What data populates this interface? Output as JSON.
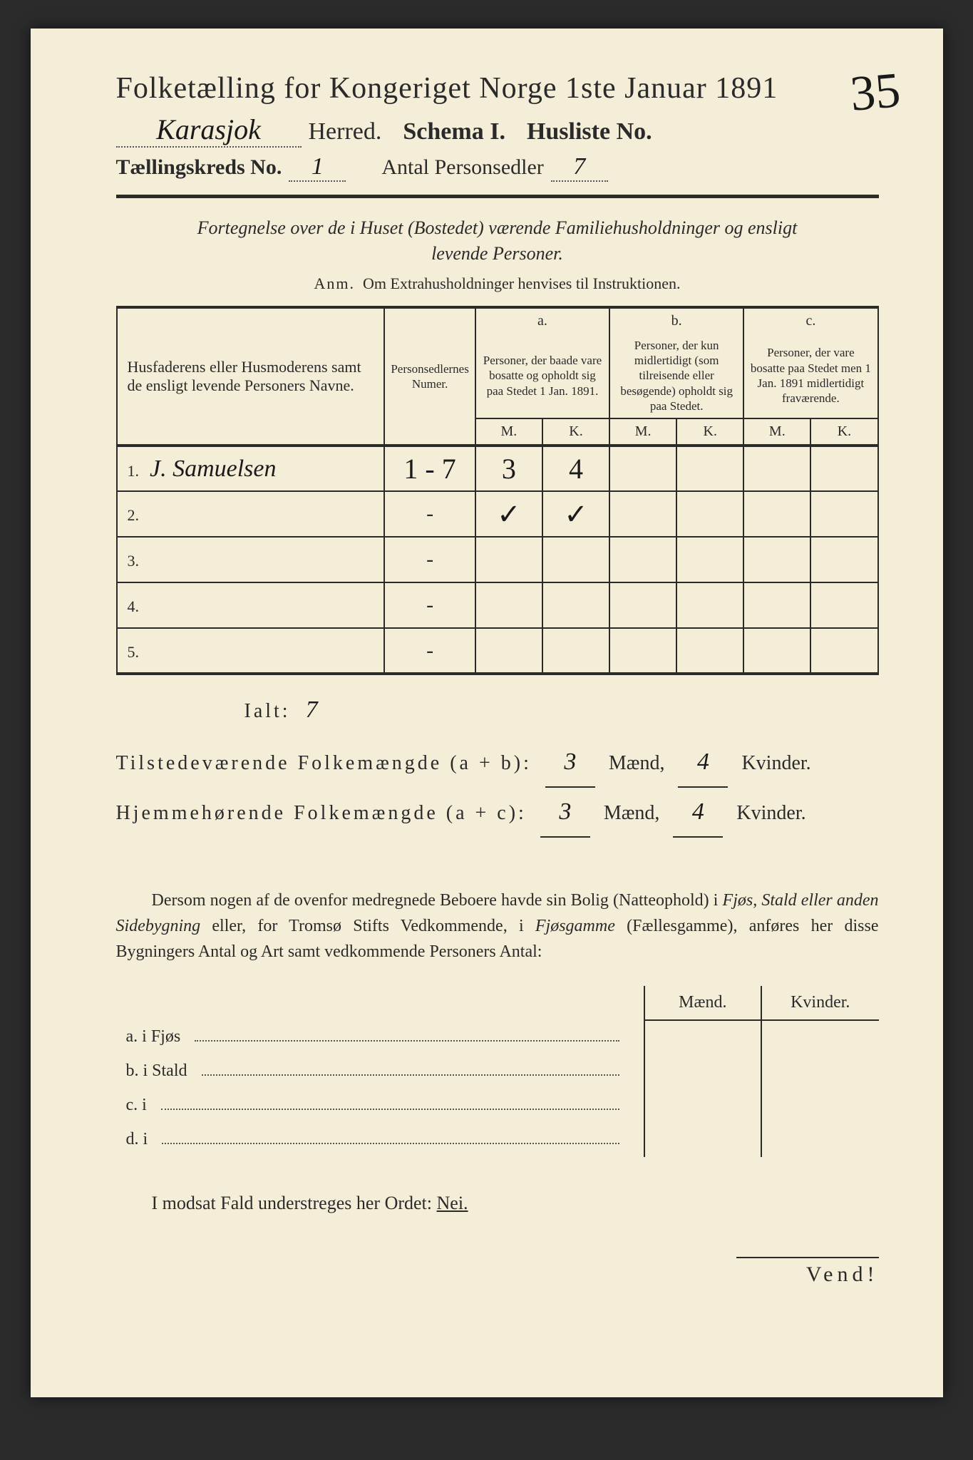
{
  "header": {
    "title": "Folketælling for Kongeriget Norge 1ste Januar 1891",
    "herred_value": "Karasjok",
    "herred_label": "Herred.",
    "schema_label": "Schema I.",
    "husliste_label": "Husliste No.",
    "husliste_no": "35",
    "kreds_label": "Tællingskreds No.",
    "kreds_no": "1",
    "antal_label": "Antal Personsedler",
    "antal_value": "7"
  },
  "subtitle": {
    "line1": "Fortegnelse over de i Huset (Bostedet) værende Familiehusholdninger og ensligt",
    "line2": "levende Personer."
  },
  "anm": {
    "prefix": "Anm.",
    "text": "Om Extrahusholdninger henvises til Instruktionen."
  },
  "table": {
    "col_name": "Husfaderens eller Husmoderens samt de ensligt levende Personers Navne.",
    "col_num": "Personsedlernes Numer.",
    "col_a_label": "a.",
    "col_a_text": "Personer, der baade vare bosatte og opholdt sig paa Stedet 1 Jan. 1891.",
    "col_b_label": "b.",
    "col_b_text": "Personer, der kun midlertidigt (som tilreisende eller besøgende) opholdt sig paa Stedet.",
    "col_c_label": "c.",
    "col_c_text": "Personer, der vare bosatte paa Stedet men 1 Jan. 1891 midlertidigt fraværende.",
    "M": "M.",
    "K": "K.",
    "rows": [
      {
        "idx": "1.",
        "name": "J. Samuelsen",
        "num": "1 - 7",
        "aM": "3",
        "aK": "4",
        "bM": "",
        "bK": "",
        "cM": "",
        "cK": ""
      },
      {
        "idx": "2.",
        "name": "",
        "num": "-",
        "aM": "✓",
        "aK": "✓",
        "bM": "",
        "bK": "",
        "cM": "",
        "cK": ""
      },
      {
        "idx": "3.",
        "name": "",
        "num": "-",
        "aM": "",
        "aK": "",
        "bM": "",
        "bK": "",
        "cM": "",
        "cK": ""
      },
      {
        "idx": "4.",
        "name": "",
        "num": "-",
        "aM": "",
        "aK": "",
        "bM": "",
        "bK": "",
        "cM": "",
        "cK": ""
      },
      {
        "idx": "5.",
        "name": "",
        "num": "-",
        "aM": "",
        "aK": "",
        "bM": "",
        "bK": "",
        "cM": "",
        "cK": ""
      }
    ]
  },
  "totals": {
    "ialt_label": "Ialt:",
    "ialt_value": "7",
    "line1_label": "Tilstedeværende Folkemængde (a + b):",
    "line2_label": "Hjemmehørende Folkemængde (a + c):",
    "maend": "Mænd,",
    "kvinder": "Kvinder.",
    "l1_m": "3",
    "l1_k": "4",
    "l2_m": "3",
    "l2_k": "4"
  },
  "paragraph": {
    "text1": "Dersom nogen af de ovenfor medregnede Beboere havde sin Bolig (Natteophold) i ",
    "it1": "Fjøs, Stald eller anden Sidebygning",
    "text2": " eller, for Tromsø Stifts Vedkommende, i ",
    "it2": "Fjøsgamme",
    "text3": " (Fællesgamme), anføres her disse Bygningers Antal og Art samt vedkommende Personers Antal:"
  },
  "second_table": {
    "head_m": "Mænd.",
    "head_k": "Kvinder.",
    "rows": [
      {
        "lead": "a.  i      Fjøs"
      },
      {
        "lead": "b.  i      Stald"
      },
      {
        "lead": "c.  i"
      },
      {
        "lead": "d.  i"
      }
    ]
  },
  "modsat": {
    "text1": "I modsat Fald understreges her Ordet: ",
    "nei": "Nei."
  },
  "vend": "Vend!"
}
